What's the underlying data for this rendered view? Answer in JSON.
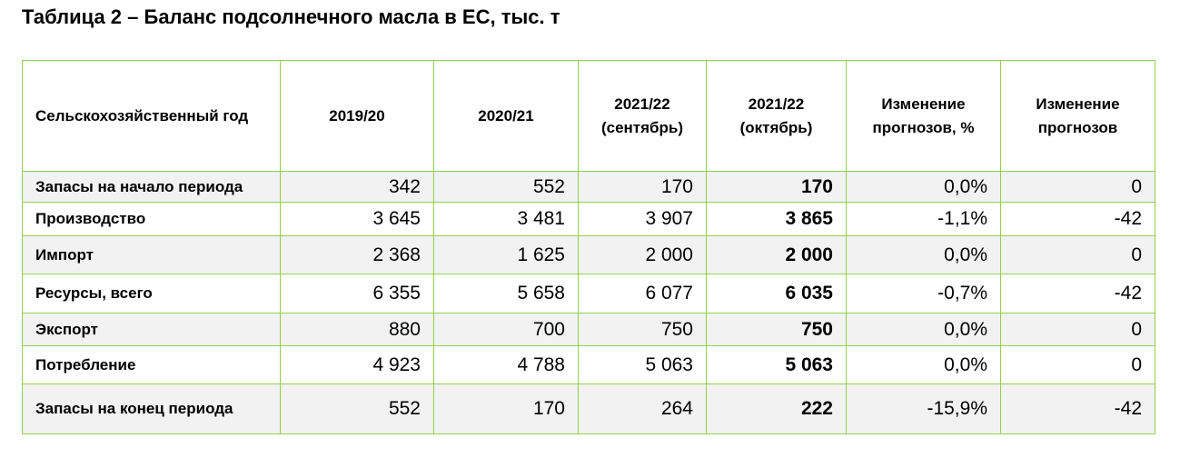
{
  "header": {
    "title": "Таблица 2 – Баланс подсолнечного масла в ЕС, тыс. т"
  },
  "table": {
    "columns": [
      [
        "Сельскохозяйственный год"
      ],
      [
        "2019/20"
      ],
      [
        "2020/21"
      ],
      [
        "2021/22",
        "(сентябрь)"
      ],
      [
        "2021/22",
        "(октябрь)"
      ],
      [
        "Изменение",
        "прогнозов, %"
      ],
      [
        "Изменение",
        "прогнозов"
      ]
    ],
    "rows": [
      [
        "Запасы на начало периода",
        "342",
        "552",
        "170",
        "170",
        "0,0%",
        "0"
      ],
      [
        "Производство",
        "3 645",
        "3 481",
        "3 907",
        "3 865",
        "-1,1%",
        "-42"
      ],
      [
        "Импорт",
        "2 368",
        "1 625",
        "2 000",
        "2 000",
        "0,0%",
        "0"
      ],
      [
        "Ресурсы, всего",
        "6 355",
        "5 658",
        "6 077",
        "6 035",
        "-0,7%",
        "-42"
      ],
      [
        "Экспорт",
        "880",
        "700",
        "750",
        "750",
        "0,0%",
        "0"
      ],
      [
        "Потребление",
        "4 923",
        "4 788",
        "5 063",
        "5 063",
        "0,0%",
        "0"
      ],
      [
        "Запасы на конец периода",
        "552",
        "170",
        "264",
        "222",
        "-15,9%",
        "-42"
      ]
    ]
  }
}
